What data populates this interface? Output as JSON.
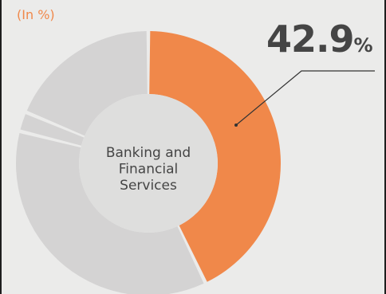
{
  "unit_label": "(In %)",
  "highlight": {
    "value": "42.9",
    "suffix": "%"
  },
  "colors": {
    "highlight": "#f0884a",
    "other": "#d4d3d3",
    "center": "#dededd",
    "background": "#ebebea",
    "text": "#454545"
  },
  "chart_data": {
    "type": "pie",
    "subtype": "donut",
    "center_label": [
      "Banking and",
      "Financial",
      "Services"
    ],
    "slices": [
      {
        "label": "Banking and Financial Services",
        "value": 42.9,
        "highlighted": true
      },
      {
        "label": "",
        "value": 36.0,
        "highlighted": false
      },
      {
        "label": "",
        "value": 2.4,
        "highlighted": false
      },
      {
        "label": "",
        "value": 18.7,
        "highlighted": false
      }
    ],
    "start_angle": "12 o'clock",
    "direction": "clockwise"
  }
}
